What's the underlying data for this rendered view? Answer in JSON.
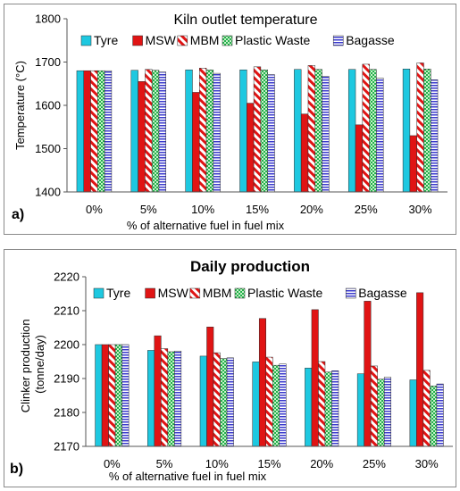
{
  "chart_data": [
    {
      "type": "bar",
      "panel_label": "a)",
      "title": "Kiln outlet temperature",
      "xlabel": "% of  alternative fuel in fuel mix",
      "ylabel": "Temperature (°C)",
      "ylim": [
        1400,
        1800
      ],
      "yticks": [
        1400,
        1500,
        1600,
        1700,
        1800
      ],
      "grid": false,
      "legend_position": "top",
      "categories": [
        "0%",
        "5%",
        "10%",
        "15%",
        "20%",
        "25%",
        "30%"
      ],
      "series": [
        {
          "name": "Tyre",
          "values": [
            1680,
            1681,
            1682,
            1682,
            1683,
            1683,
            1684
          ]
        },
        {
          "name": "MSW",
          "values": [
            1680,
            1655,
            1630,
            1605,
            1580,
            1555,
            1530
          ]
        },
        {
          "name": "MBM",
          "values": [
            1680,
            1683,
            1686,
            1689,
            1692,
            1695,
            1698
          ]
        },
        {
          "name": "Plastic Waste",
          "values": [
            1680,
            1681,
            1682,
            1682,
            1683,
            1683,
            1684
          ]
        },
        {
          "name": "Bagasse",
          "values": [
            1680,
            1677,
            1674,
            1671,
            1667,
            1663,
            1659
          ]
        }
      ]
    },
    {
      "type": "bar",
      "panel_label": "b)",
      "title": "Daily production",
      "xlabel": "% of  alternative fuel in fuel mix",
      "ylabel": "Clinker production (tonne/day)",
      "ylim": [
        2170,
        2220
      ],
      "yticks": [
        2170,
        2180,
        2190,
        2200,
        2210,
        2220
      ],
      "grid": false,
      "legend_position": "top",
      "categories": [
        "0%",
        "5%",
        "10%",
        "15%",
        "20%",
        "25%",
        "30%"
      ],
      "series": [
        {
          "name": "Tyre",
          "values": [
            2200,
            2198.3,
            2196.6,
            2194.9,
            2193.1,
            2191.4,
            2189.6
          ]
        },
        {
          "name": "MSW",
          "values": [
            2200,
            2202.6,
            2205.2,
            2207.7,
            2210.3,
            2212.8,
            2215.3
          ]
        },
        {
          "name": "MBM",
          "values": [
            2200,
            2198.8,
            2197.6,
            2196.3,
            2195.0,
            2193.7,
            2192.4
          ]
        },
        {
          "name": "Plastic Waste",
          "values": [
            2200,
            2197.9,
            2195.9,
            2193.9,
            2191.9,
            2189.8,
            2187.8
          ]
        },
        {
          "name": "Bagasse",
          "values": [
            2200,
            2198.1,
            2196.1,
            2194.3,
            2192.3,
            2190.4,
            2188.4
          ]
        }
      ]
    }
  ],
  "series_styles": [
    {
      "fill": "#1ec8e0",
      "pattern": "solid"
    },
    {
      "fill": "#e01414",
      "pattern": "solid"
    },
    {
      "fill": "#e01414",
      "pattern": "diagonal-stripes"
    },
    {
      "fill": "#22b14c",
      "pattern": "checker"
    },
    {
      "fill": "#3a3acc",
      "pattern": "horizontal-lines"
    }
  ]
}
